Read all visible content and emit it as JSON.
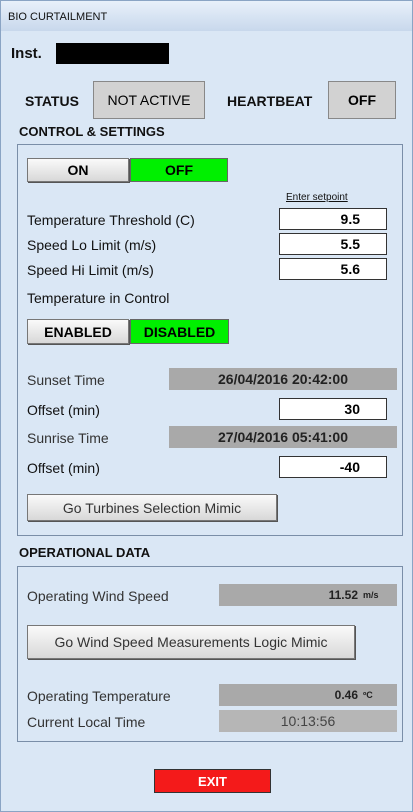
{
  "window_title": "BIO CURTAILMENT",
  "inst_label": "Inst.",
  "status": {
    "label": "STATUS",
    "value": "NOT ACTIVE"
  },
  "heartbeat": {
    "label": "HEARTBEAT",
    "value": "OFF"
  },
  "control": {
    "title": "CONTROL & SETTINGS",
    "on": "ON",
    "off": "OFF",
    "setpoint_hint": "Enter setpoint",
    "setpoints": [
      {
        "label": "Temperature Threshold (C)",
        "value": 9.5
      },
      {
        "label": "Speed Lo Limit (m/s)",
        "value": 5.5
      },
      {
        "label": "Speed Hi Limit (m/s)",
        "value": 5.6
      }
    ],
    "temp_control_label": "Temperature in Control",
    "enabled": "ENABLED",
    "disabled": "DISABLED",
    "sunset": {
      "label": "Sunset Time",
      "value": "26/04/2016 20:42:00"
    },
    "sunset_offset": {
      "label": "Offset (min)",
      "value": 30
    },
    "sunrise": {
      "label": "Sunrise Time",
      "value": "27/04/2016 05:41:00"
    },
    "sunrise_offset": {
      "label": "Offset (min)",
      "value": -40
    },
    "turbines_button": "Go Turbines Selection Mimic"
  },
  "operational": {
    "title": "OPERATIONAL DATA",
    "wind": {
      "label": "Operating Wind Speed",
      "value": 11.52,
      "unit": "m/s"
    },
    "wind_button": "Go Wind Speed Measurements Logic Mimic",
    "temperature": {
      "label": "Operating Temperature",
      "value": 0.46,
      "unit": "ºC"
    },
    "local_time": {
      "label": "Current Local Time",
      "value": "10:13:56"
    }
  },
  "exit": "EXIT"
}
